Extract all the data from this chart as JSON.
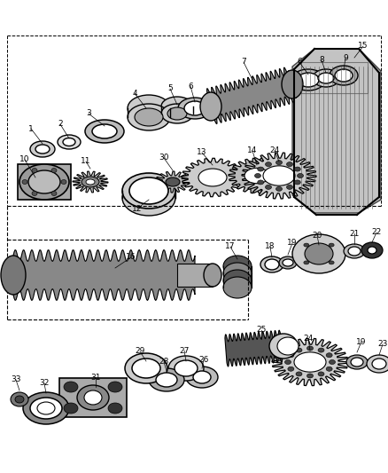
{
  "bg_color": "#ffffff",
  "line_color": "#000000",
  "figsize": [
    4.38,
    5.33
  ],
  "dpi": 100
}
